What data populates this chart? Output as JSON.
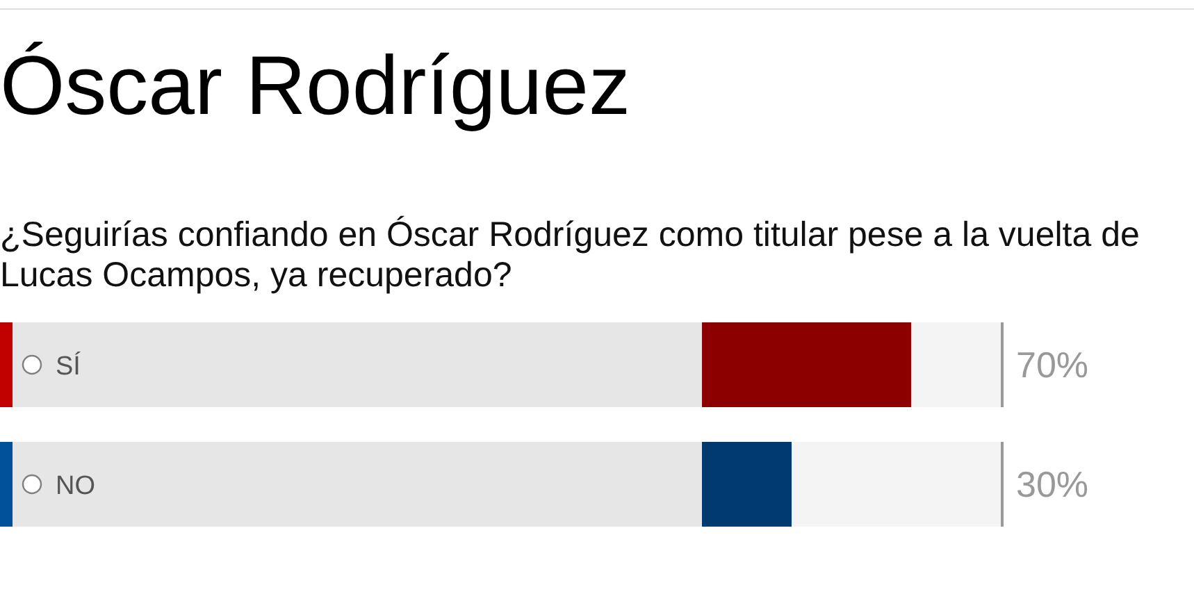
{
  "chart_data": {
    "type": "bar",
    "orientation": "horizontal",
    "title": "Óscar Rodríguez",
    "subtitle": "¿Seguirías confiando en Óscar Rodríguez como titular pese a la vuelta de Lucas Ocampos, ya recuperado?",
    "categories": [
      "SÍ",
      "NO"
    ],
    "values": [
      70,
      30
    ],
    "colors": [
      "#8c0000",
      "#013a70"
    ],
    "value_labels": [
      "70%",
      "30%"
    ],
    "xlim": [
      0,
      100
    ],
    "tick_labels": "y"
  }
}
